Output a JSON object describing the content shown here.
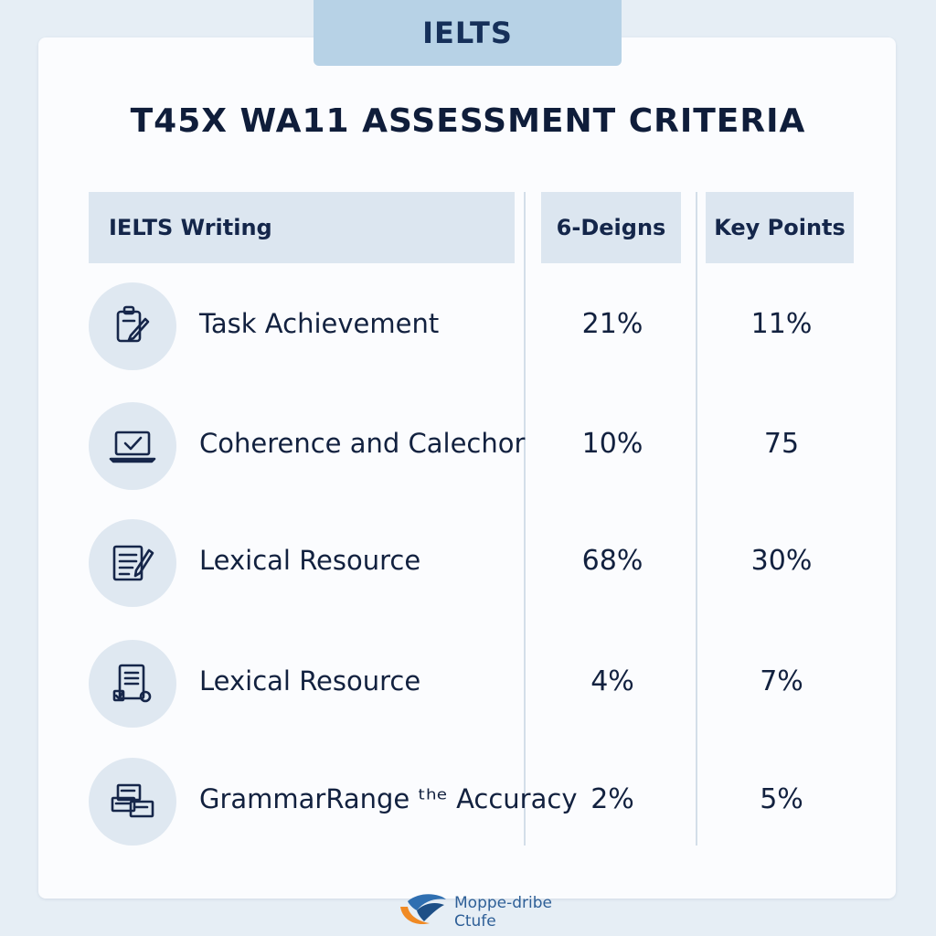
{
  "badge": "IELTS",
  "title": "T45X WA11 ASSESSMENT CRITERIA",
  "table": {
    "headers": [
      "IELTS Writing",
      "6-Deigns",
      "Key Points"
    ],
    "rows": [
      {
        "icon": "clipboard-pencil-icon",
        "label": "Task Achievement",
        "v1": "21%",
        "v2": "11%"
      },
      {
        "icon": "laptop-check-icon",
        "label": "Coherence and Calechor",
        "v1": "10%",
        "v2": "75"
      },
      {
        "icon": "document-pencil-icon",
        "label": "Lexical Resource",
        "v1": "68%",
        "v2": "30%"
      },
      {
        "icon": "document-checklist-icon",
        "label": "Lexical Resource",
        "v1": "4%",
        "v2": "7%"
      },
      {
        "icon": "stacked-cards-icon",
        "label": "GrammarRange ᵗʰᵉ Accuracy",
        "v1": "2%",
        "v2": "5%"
      }
    ]
  },
  "footer": {
    "logo": "swoosh-logo-icon",
    "line1": "Moppe-dribe",
    "line2": "Ctufe"
  },
  "colors": {
    "background": "#e6eef5",
    "card": "#fbfcfe",
    "header_cell": "#dce6f0",
    "badge": "#b7d2e6",
    "icon_circle": "#dfe8f1",
    "text": "#0e1f3d"
  }
}
